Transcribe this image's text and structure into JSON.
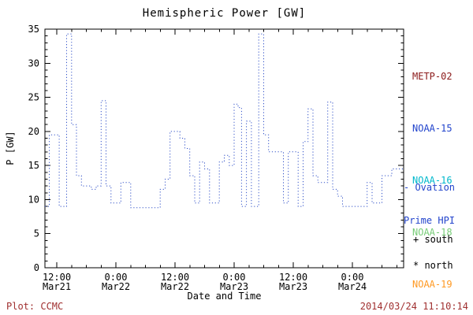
{
  "colors": {
    "frame": "#000000",
    "hpi_line": "#3050c8",
    "footer": "#a03030"
  },
  "legend": {
    "items": [
      {
        "label": "METP-02",
        "color": "#8b1a1a"
      },
      {
        "label": "NOAA-15",
        "color": "#2244cc"
      },
      {
        "label": "NOAA-16",
        "color": "#00b8cc"
      },
      {
        "label": "NOAA-18",
        "color": "#77cc77"
      },
      {
        "label": "NOAA-19",
        "color": "#ff9922"
      }
    ]
  },
  "annotation": {
    "line1": "- Ovation",
    "line2": "Prime HPI",
    "color": "#2244cc"
  },
  "markers": {
    "south": "+ south",
    "north": "* north"
  },
  "footer": {
    "credit": "Plot: CCMC",
    "timestamp": "2014/03/24 11:10:14"
  },
  "chart_data": {
    "type": "line",
    "title": "Hemispheric Power [GW]",
    "xlabel": "Date and Time",
    "ylabel": "P [GW]",
    "ylim": [
      0,
      35
    ],
    "yticks": [
      0,
      5,
      10,
      15,
      20,
      25,
      30,
      35
    ],
    "y_minor_step": 1,
    "xlim_hours": [
      -2.4,
      70.4
    ],
    "x_epoch": "hours relative to Mar21 12:00",
    "x_minor_step_hours": 3,
    "xticks": [
      {
        "hour": 0,
        "time": "12:00",
        "date": "Mar21"
      },
      {
        "hour": 12,
        "time": "0:00",
        "date": "Mar22"
      },
      {
        "hour": 24,
        "time": "12:00",
        "date": "Mar22"
      },
      {
        "hour": 36,
        "time": "0:00",
        "date": "Mar23"
      },
      {
        "hour": 48,
        "time": "12:00",
        "date": "Mar23"
      },
      {
        "hour": 60,
        "time": "0:00",
        "date": "Mar24"
      }
    ],
    "line_color": "#3050c8",
    "line_style": "dotted",
    "step": true,
    "grid": false,
    "legend_position": "right-outside",
    "series": [
      {
        "name": "Ovation Prime HPI",
        "x_hours": [
          -2.4,
          -1.5,
          0.5,
          2,
          3,
          4,
          5,
          7,
          8,
          9,
          10,
          11,
          13,
          15,
          21,
          22,
          23,
          25,
          26,
          27,
          28,
          29,
          30,
          31,
          33,
          34,
          35,
          36,
          36.8,
          37.5,
          38.5,
          39.5,
          41,
          42,
          43,
          46,
          47,
          49,
          50,
          51,
          52,
          53,
          55,
          56,
          57,
          58,
          63,
          64,
          66,
          68
        ],
        "y_gw": [
          9,
          19.5,
          9,
          34.3,
          21,
          13.5,
          12,
          11.5,
          12,
          24.5,
          12,
          9.5,
          12.5,
          8.8,
          11.5,
          13,
          20,
          19,
          17.5,
          13.5,
          9.5,
          15.5,
          14.5,
          9.5,
          15.5,
          16.5,
          15,
          24,
          23.5,
          9,
          21.5,
          9,
          34.3,
          19.5,
          17,
          9.5,
          17,
          9,
          18.5,
          23.3,
          13.5,
          12.5,
          24.3,
          11.5,
          10.5,
          9,
          12.5,
          9.5,
          13.5,
          14.5
        ]
      }
    ]
  }
}
